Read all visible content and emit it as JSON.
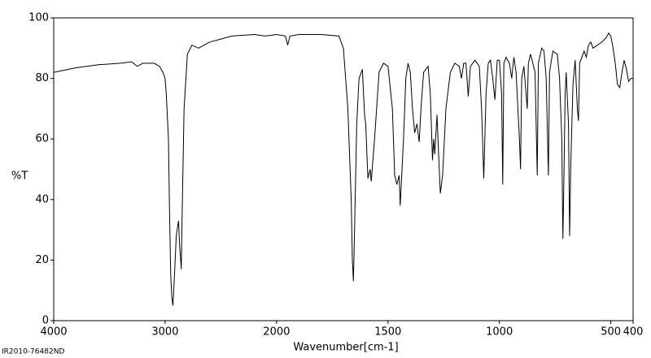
{
  "chart_data": {
    "type": "line",
    "x_label": "Wavenumber[cm-1]",
    "y_label": "%T",
    "footer": "IR2010-76482ND",
    "xlim": [
      4000,
      400
    ],
    "x_scale_change": {
      "at": 2000,
      "factor": 2
    },
    "xticks": [
      4000,
      3000,
      2000,
      1500,
      1000,
      500,
      400
    ],
    "ylim": [
      0,
      100
    ],
    "yticks": [
      0,
      20,
      40,
      60,
      80,
      100
    ],
    "series": [
      {
        "color": "#000000",
        "x": [
          4000,
          3800,
          3600,
          3400,
          3300,
          3250,
          3200,
          3100,
          3050,
          3020,
          3000,
          2990,
          2970,
          2960,
          2950,
          2940,
          2930,
          2920,
          2900,
          2880,
          2870,
          2855,
          2850,
          2830,
          2800,
          2760,
          2700,
          2600,
          2500,
          2400,
          2200,
          2100,
          2000,
          1960,
          1950,
          1940,
          1900,
          1800,
          1720,
          1700,
          1680,
          1665,
          1660,
          1655,
          1650,
          1640,
          1630,
          1615,
          1605,
          1600,
          1590,
          1580,
          1575,
          1560,
          1540,
          1520,
          1500,
          1480,
          1470,
          1460,
          1450,
          1445,
          1430,
          1420,
          1410,
          1400,
          1390,
          1380,
          1370,
          1360,
          1350,
          1340,
          1320,
          1310,
          1300,
          1295,
          1290,
          1280,
          1270,
          1265,
          1255,
          1240,
          1220,
          1200,
          1180,
          1170,
          1160,
          1150,
          1140,
          1130,
          1110,
          1090,
          1080,
          1070,
          1060,
          1050,
          1040,
          1030,
          1020,
          1010,
          1000,
          990,
          985,
          980,
          970,
          955,
          945,
          935,
          925,
          910,
          905,
          900,
          890,
          875,
          870,
          860,
          850,
          840,
          830,
          825,
          810,
          800,
          790,
          780,
          775,
          760,
          740,
          730,
          720,
          715,
          712,
          705,
          700,
          690,
          685,
          680,
          670,
          660,
          650,
          645,
          640,
          620,
          610,
          600,
          590,
          580,
          560,
          540,
          520,
          510,
          500,
          490,
          480,
          470,
          460,
          450,
          440,
          430,
          420,
          410,
          400
        ],
        "values": [
          82,
          83.5,
          84.5,
          85,
          85.5,
          84,
          85,
          85,
          84,
          82,
          80,
          75,
          60,
          35,
          15,
          8,
          5,
          12,
          28,
          33,
          25,
          17,
          30,
          70,
          88,
          91,
          90,
          92,
          93,
          94,
          94.5,
          94,
          94.5,
          94,
          91,
          94,
          94.5,
          94.5,
          94,
          90,
          70,
          40,
          20,
          13,
          30,
          65,
          80,
          83,
          68,
          65,
          47,
          50,
          46,
          60,
          82,
          85,
          84,
          70,
          48,
          45,
          48,
          38,
          60,
          80,
          85,
          82,
          70,
          62,
          65,
          59,
          72,
          82,
          84,
          75,
          53,
          60,
          55,
          68,
          50,
          42,
          48,
          70,
          82,
          85,
          84,
          80,
          85,
          85,
          74,
          84,
          86,
          84,
          70,
          47,
          75,
          85,
          86,
          80,
          73,
          86,
          86,
          75,
          45,
          85,
          87,
          85,
          80,
          87,
          82,
          60,
          50,
          80,
          84,
          70,
          85,
          88,
          85,
          82,
          48,
          85,
          90,
          89,
          80,
          48,
          82,
          89,
          88,
          80,
          60,
          27,
          40,
          75,
          82,
          65,
          28,
          50,
          78,
          86,
          70,
          66,
          85,
          89,
          87,
          91,
          92,
          90,
          91,
          92,
          93.5,
          95,
          94,
          90,
          85,
          78,
          77,
          82,
          86,
          83,
          79,
          80,
          80
        ]
      }
    ]
  }
}
